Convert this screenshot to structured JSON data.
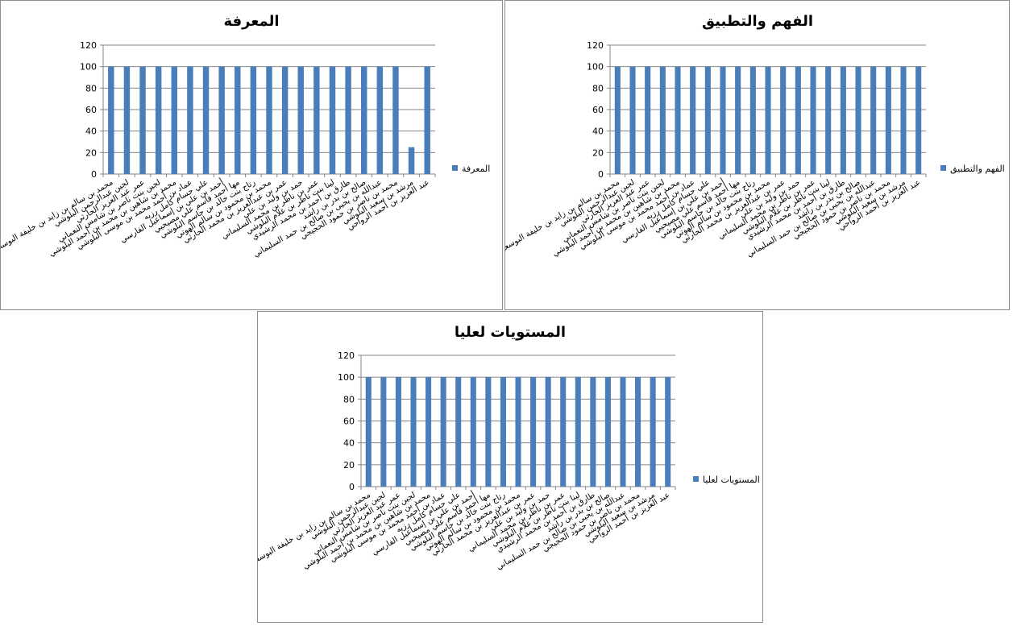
{
  "colors": {
    "bar": "#4a7ebb",
    "grid": "#868686",
    "border": "#8c8c8c"
  },
  "categories": [
    "محمد بن سالم بن زايد بن خليفة البوسعيدي",
    "لجين عبدالرحمن البلوشي",
    "عمر عبد العزيز الحارثي",
    "لجين بنت ناصر بن شامس النعماني",
    "محمد بن شاهين بن محمد بن أحمد البلوشي",
    "عماد بن أحمد محمد بن موسى البلوشي",
    "علي حسام كامل رزيه",
    "أحمد بن علي بن إسماعيل الفارسي",
    "مها أحمد قاسم علي مصيحيي",
    "رتاج بنت خالد بن جاسم البلوشي",
    "محمد بن محمود بن سالم الهوتي",
    "عمر بن عبدالعزيز بن محمد الحارثي",
    "حمد بن وليد بن علي",
    "عمر بن ناظر بن محمد السليماني",
    "لينا بنت ناظر بن غلام البلوشي",
    "طارق بن أحمد بن محمد الرشيدي",
    "صالح بن بدر بن راشد",
    "عبدالله بن يحيى بن صالح بن حمد السليماني",
    "محمد بن ناصر بن حمود الحجيجي",
    "مرشد بن سعيد البلوشي",
    "عبد العزيز بن أحمد الرواحي"
  ],
  "extra_labels": [
    "الحارثي",
    "الحارثي",
    "الحارثي"
  ],
  "chart_data": [
    {
      "type": "bar",
      "title": "المعرفة",
      "legend": "المعرفة",
      "legend_position": "right",
      "ylim": [
        0,
        120
      ],
      "yticks": [
        0,
        20,
        40,
        60,
        80,
        100,
        120
      ],
      "grid": true,
      "values": [
        100,
        100,
        100,
        100,
        100,
        100,
        100,
        100,
        100,
        100,
        100,
        100,
        100,
        100,
        100,
        100,
        100,
        100,
        100,
        25,
        100
      ]
    },
    {
      "type": "bar",
      "title": "الفهم والتطبيق",
      "legend": "الفهم والتطبيق",
      "legend_position": "right",
      "ylim": [
        0,
        120
      ],
      "yticks": [
        0,
        20,
        40,
        60,
        80,
        100,
        120
      ],
      "grid": true,
      "values": [
        100,
        100,
        100,
        100,
        100,
        100,
        100,
        100,
        100,
        100,
        100,
        100,
        100,
        100,
        100,
        100,
        100,
        100,
        100,
        100,
        100
      ]
    },
    {
      "type": "bar",
      "title": "المستويات لعليا",
      "legend": "المستويات لعليا",
      "legend_position": "right",
      "ylim": [
        0,
        120
      ],
      "yticks": [
        0,
        20,
        40,
        60,
        80,
        100,
        120
      ],
      "grid": true,
      "values": [
        100,
        100,
        100,
        100,
        100,
        100,
        100,
        100,
        100,
        100,
        100,
        100,
        100,
        100,
        100,
        100,
        100,
        100,
        100,
        100,
        100
      ]
    }
  ]
}
